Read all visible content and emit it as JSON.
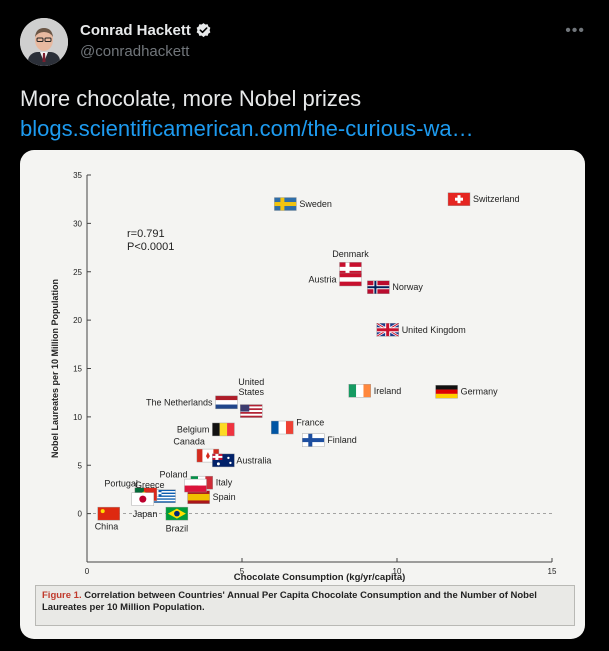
{
  "header": {
    "display_name": "Conrad Hackett",
    "handle": "@conradhackett",
    "more_label": "•••"
  },
  "tweet": {
    "text": "More chocolate, more Nobel prizes",
    "link_text": "blogs.scientificamerican.com/the-curious-wa…"
  },
  "figure": {
    "caption_label": "Figure 1.",
    "caption_text": "Correlation between Countries' Annual Per Capita Chocolate Consumption and the Number of Nobel Laureates per 10 Million Population."
  },
  "chart_data": {
    "type": "scatter",
    "title": "",
    "xlabel": "Chocolate Consumption (kg/yr/capita)",
    "ylabel": "Nobel Laureates per 10 Million Population",
    "xlim": [
      0,
      15
    ],
    "ylim": [
      -5,
      35
    ],
    "xticks": [
      0,
      5,
      10,
      15
    ],
    "yticks": [
      0,
      5,
      10,
      15,
      20,
      25,
      30,
      35
    ],
    "annotations": [
      "r=0.791",
      "P<0.0001"
    ],
    "points": [
      {
        "country": "Switzerland",
        "x": 12.0,
        "y": 32.5
      },
      {
        "country": "Sweden",
        "x": 6.4,
        "y": 32.0
      },
      {
        "country": "Denmark",
        "x": 8.5,
        "y": 25.3
      },
      {
        "country": "Austria",
        "x": 8.5,
        "y": 24.2
      },
      {
        "country": "Norway",
        "x": 9.4,
        "y": 23.4
      },
      {
        "country": "United Kingdom",
        "x": 9.7,
        "y": 19.0
      },
      {
        "country": "Ireland",
        "x": 8.8,
        "y": 12.7
      },
      {
        "country": "Germany",
        "x": 11.6,
        "y": 12.6
      },
      {
        "country": "United States",
        "x": 5.3,
        "y": 10.6
      },
      {
        "country": "The Netherlands",
        "x": 4.5,
        "y": 11.5
      },
      {
        "country": "France",
        "x": 6.3,
        "y": 8.9
      },
      {
        "country": "Finland",
        "x": 7.3,
        "y": 7.6
      },
      {
        "country": "Belgium",
        "x": 4.4,
        "y": 8.7
      },
      {
        "country": "Canada",
        "x": 3.9,
        "y": 6.0
      },
      {
        "country": "Australia",
        "x": 4.4,
        "y": 5.5
      },
      {
        "country": "Italy",
        "x": 3.7,
        "y": 3.2
      },
      {
        "country": "Spain",
        "x": 3.6,
        "y": 1.7
      },
      {
        "country": "Poland",
        "x": 3.5,
        "y": 2.9
      },
      {
        "country": "Greece",
        "x": 2.5,
        "y": 1.8
      },
      {
        "country": "Portugal",
        "x": 1.9,
        "y": 2.0
      },
      {
        "country": "Japan",
        "x": 1.8,
        "y": 1.5
      },
      {
        "country": "China",
        "x": 0.7,
        "y": 0.0
      },
      {
        "country": "Brazil",
        "x": 2.9,
        "y": 0.0
      }
    ]
  }
}
